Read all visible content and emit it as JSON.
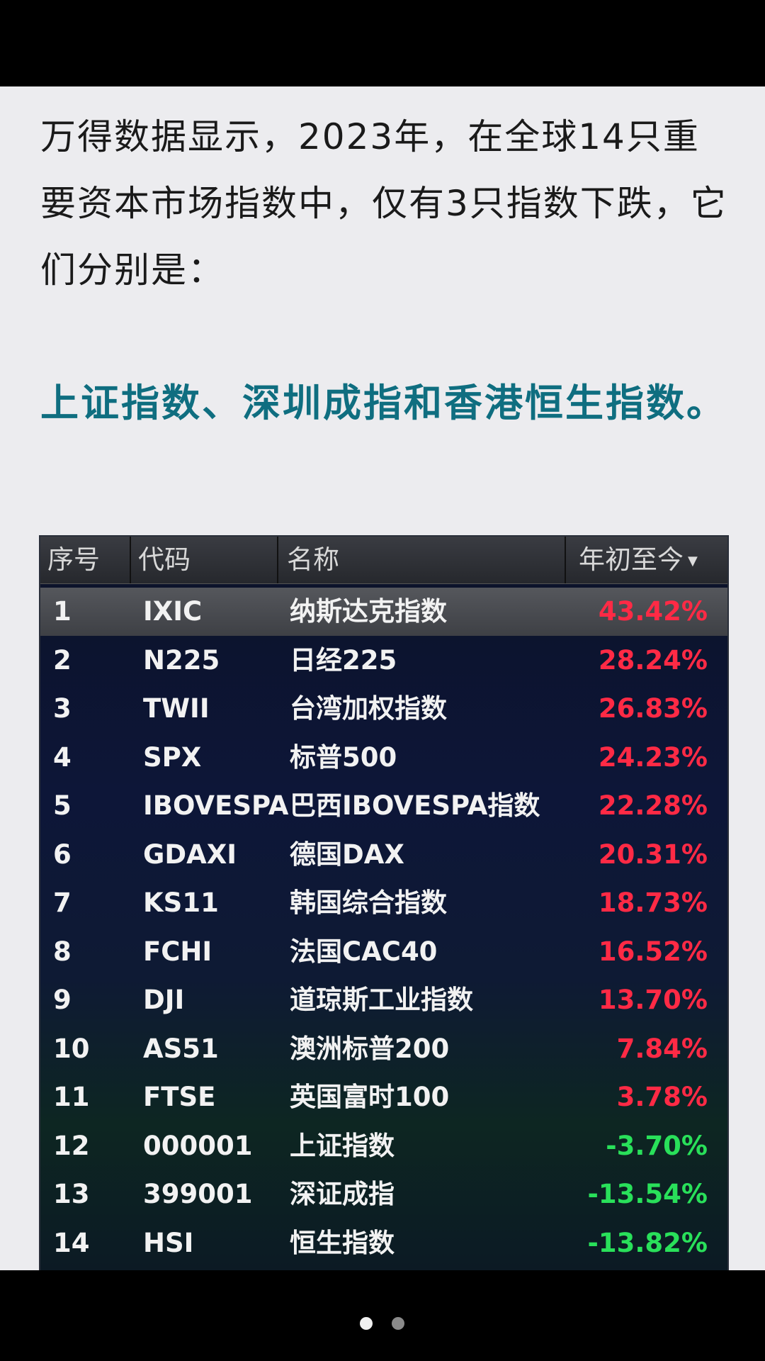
{
  "article": {
    "intro": "万得数据显示，2023年，在全球14只重要资本市场指数中，仅有3只指数下跌，它们分别是：",
    "highlight": "上证指数、深圳成指和香港恒生指数。"
  },
  "table": {
    "headers": {
      "index": "序号",
      "code": "代码",
      "name": "名称",
      "ytd": "年初至今"
    },
    "sort_icon": "▼",
    "rows": [
      {
        "index": "1",
        "code": "IXIC",
        "name": "纳斯达克指数",
        "ytd": "43.42%",
        "dir": "up"
      },
      {
        "index": "2",
        "code": "N225",
        "name": "日经225",
        "ytd": "28.24%",
        "dir": "up"
      },
      {
        "index": "3",
        "code": "TWII",
        "name": "台湾加权指数",
        "ytd": "26.83%",
        "dir": "up"
      },
      {
        "index": "4",
        "code": "SPX",
        "name": "标普500",
        "ytd": "24.23%",
        "dir": "up"
      },
      {
        "index": "5",
        "code": "IBOVESPA",
        "name": "巴西IBOVESPA指数",
        "ytd": "22.28%",
        "dir": "up"
      },
      {
        "index": "6",
        "code": "GDAXI",
        "name": "德国DAX",
        "ytd": "20.31%",
        "dir": "up"
      },
      {
        "index": "7",
        "code": "KS11",
        "name": "韩国综合指数",
        "ytd": "18.73%",
        "dir": "up"
      },
      {
        "index": "8",
        "code": "FCHI",
        "name": "法国CAC40",
        "ytd": "16.52%",
        "dir": "up"
      },
      {
        "index": "9",
        "code": "DJI",
        "name": "道琼斯工业指数",
        "ytd": "13.70%",
        "dir": "up"
      },
      {
        "index": "10",
        "code": "AS51",
        "name": "澳洲标普200",
        "ytd": "7.84%",
        "dir": "up"
      },
      {
        "index": "11",
        "code": "FTSE",
        "name": "英国富时100",
        "ytd": "3.78%",
        "dir": "up"
      },
      {
        "index": "12",
        "code": "000001",
        "name": "上证指数",
        "ytd": "-3.70%",
        "dir": "down"
      },
      {
        "index": "13",
        "code": "399001",
        "name": "深证成指",
        "ytd": "-13.54%",
        "dir": "down"
      },
      {
        "index": "14",
        "code": "HSI",
        "name": "恒生指数",
        "ytd": "-13.82%",
        "dir": "down"
      }
    ],
    "selected_row": 0
  },
  "colors": {
    "up": "#ff2a45",
    "down": "#29e05a",
    "highlight_text": "#0f6e80"
  },
  "pager": {
    "count": 2,
    "active": 0
  }
}
